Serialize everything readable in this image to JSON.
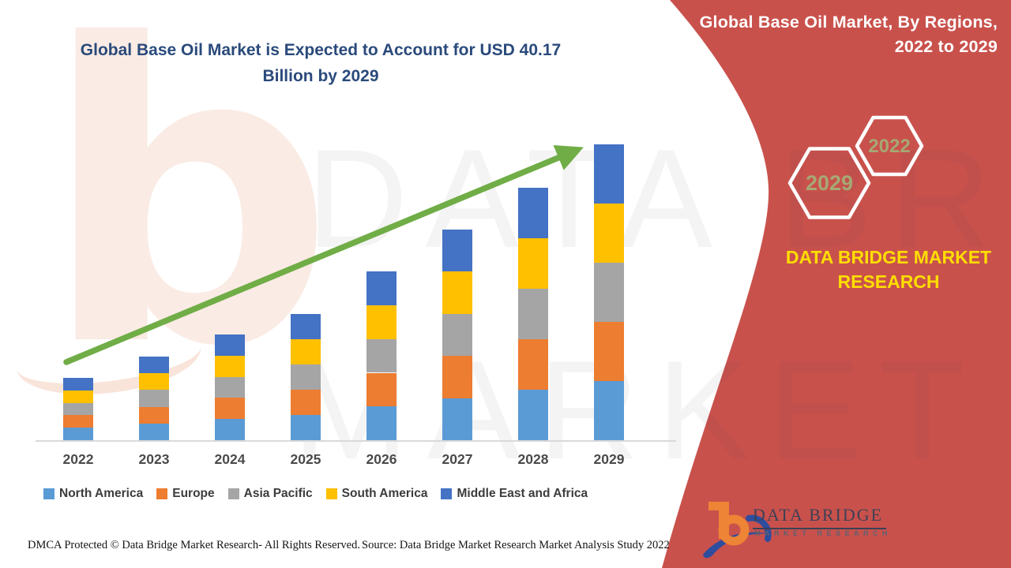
{
  "header": {
    "title_line1": "Global Base Oil Market is Expected to Account for USD 40.17",
    "title_line2": "Billion by 2029"
  },
  "right_panel": {
    "heading_line1": "Global Base Oil Market, By Regions,",
    "heading_line2": "2022 to 2029",
    "hexagon_back_label": "2029",
    "hexagon_front_label": "2022",
    "brand_line1": "DATA BRIDGE MARKET",
    "brand_line2": "RESEARCH",
    "panel_color": "#C9514C",
    "brand_text_color": "#FFDE00",
    "hexagon_text_color": "#A6A873"
  },
  "logo": {
    "name": "DATA BRIDGE",
    "tagline": "MARKET RESEARCH"
  },
  "watermark": {
    "letter_b": "b",
    "line1": "DATA BRIDGE",
    "line2": "MARKET RESEARCH"
  },
  "footer": {
    "dmca": "DMCA Protected © Data Bridge Market Research- All Rights Reserved.",
    "source": "Source: Data Bridge Market Research Market Analysis Study 2022"
  },
  "chart_data": {
    "type": "bar",
    "stacked": true,
    "title": "Global Base Oil Market is Expected to Account for USD 40.17 Billion by 2029",
    "unit": "USD Billion",
    "categories": [
      "2022",
      "2023",
      "2024",
      "2025",
      "2026",
      "2027",
      "2028",
      "2029"
    ],
    "series": [
      {
        "name": "North America",
        "color": "#5B9BD5",
        "values": [
          1.69,
          2.27,
          2.87,
          3.43,
          4.58,
          5.72,
          6.86,
          8.03
        ]
      },
      {
        "name": "Europe",
        "color": "#ED7D31",
        "values": [
          1.69,
          2.27,
          2.87,
          3.43,
          4.58,
          5.72,
          6.86,
          8.03
        ]
      },
      {
        "name": "Asia Pacific",
        "color": "#A5A5A5",
        "values": [
          1.69,
          2.27,
          2.87,
          3.43,
          4.58,
          5.72,
          6.86,
          8.03
        ]
      },
      {
        "name": "South America",
        "color": "#FFC000",
        "values": [
          1.69,
          2.27,
          2.87,
          3.43,
          4.58,
          5.72,
          6.86,
          8.03
        ]
      },
      {
        "name": "Middle East and Africa",
        "color": "#4472C4",
        "values": [
          1.69,
          2.27,
          2.87,
          3.43,
          4.58,
          5.72,
          6.86,
          8.05
        ]
      }
    ],
    "totals_usd_billion": [
      8.45,
      11.35,
      14.35,
      17.15,
      22.9,
      28.6,
      34.3,
      40.17
    ],
    "final_year_value_usd_billion": 40.17,
    "xlabel": "",
    "ylabel": "",
    "y_axis_visible": false,
    "grid": false,
    "legend_position": "bottom",
    "annotation": "upward green trend arrow from 2022 to 2029"
  }
}
